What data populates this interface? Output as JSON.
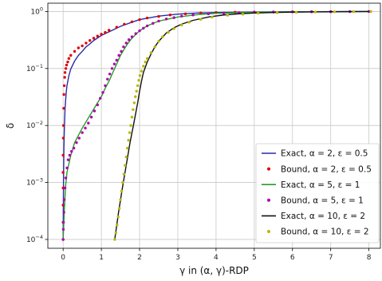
{
  "chart_data": {
    "type": "line",
    "xlabel": "γ in (α, γ)-RDP",
    "ylabel": "δ",
    "xscale": "linear",
    "yscale": "log",
    "xlim": [
      -0.4,
      8.3
    ],
    "ylim": [
      7e-05,
      1.4
    ],
    "grid": true,
    "legend_placement": "lower-right",
    "xticks": [
      0,
      1,
      2,
      3,
      4,
      5,
      6,
      7,
      8
    ],
    "xtick_labels": [
      "0",
      "1",
      "2",
      "3",
      "4",
      "5",
      "6",
      "7",
      "8"
    ],
    "yticks": [
      0.0001,
      0.001,
      0.01,
      0.1,
      1
    ],
    "ytick_labels": [
      {
        "base": "10",
        "exp": "−4"
      },
      {
        "base": "10",
        "exp": "−3"
      },
      {
        "base": "10",
        "exp": "−2"
      },
      {
        "base": "10",
        "exp": "−1"
      },
      {
        "base": "10",
        "exp": "0"
      }
    ],
    "series": [
      {
        "name": "Exact, α = 2, ε = 0.5",
        "style": "line",
        "color": "#2a2aaa",
        "points": [
          [
            0,
            0.0001
          ],
          [
            0.005,
            0.0003
          ],
          [
            0.01,
            0.001
          ],
          [
            0.02,
            0.004
          ],
          [
            0.03,
            0.008
          ],
          [
            0.05,
            0.02
          ],
          [
            0.08,
            0.038
          ],
          [
            0.1,
            0.05
          ],
          [
            0.15,
            0.075
          ],
          [
            0.2,
            0.098
          ],
          [
            0.3,
            0.135
          ],
          [
            0.4,
            0.17
          ],
          [
            0.5,
            0.2
          ],
          [
            0.6,
            0.24
          ],
          [
            0.7,
            0.27
          ],
          [
            0.8,
            0.31
          ],
          [
            1.0,
            0.38
          ],
          [
            1.2,
            0.44
          ],
          [
            1.5,
            0.55
          ],
          [
            1.8,
            0.65
          ],
          [
            2.0,
            0.72
          ],
          [
            2.5,
            0.83
          ],
          [
            3.0,
            0.9
          ],
          [
            3.5,
            0.94
          ],
          [
            4.0,
            0.96
          ],
          [
            5.0,
            0.98
          ],
          [
            6.0,
            0.99
          ],
          [
            7.0,
            0.995
          ],
          [
            8.0,
            1.0
          ]
        ]
      },
      {
        "name": "Bound, α = 2, ε = 0.5",
        "style": "scatter",
        "color": "#e00000",
        "points": [
          [
            0,
            0.0001
          ],
          [
            0,
            0.0002
          ],
          [
            0,
            0.0004
          ],
          [
            0,
            0.0008
          ],
          [
            0,
            0.0015
          ],
          [
            0,
            0.003
          ],
          [
            0.005,
            0.006
          ],
          [
            0.01,
            0.01
          ],
          [
            0.015,
            0.02
          ],
          [
            0.02,
            0.035
          ],
          [
            0.03,
            0.05
          ],
          [
            0.04,
            0.07
          ],
          [
            0.05,
            0.085
          ],
          [
            0.07,
            0.1
          ],
          [
            0.09,
            0.115
          ],
          [
            0.12,
            0.13
          ],
          [
            0.15,
            0.15
          ],
          [
            0.2,
            0.17
          ],
          [
            0.3,
            0.2
          ],
          [
            0.4,
            0.23
          ],
          [
            0.5,
            0.25
          ],
          [
            0.6,
            0.28
          ],
          [
            0.7,
            0.31
          ],
          [
            0.8,
            0.34
          ],
          [
            0.9,
            0.37
          ],
          [
            1.0,
            0.4
          ],
          [
            1.1,
            0.43
          ],
          [
            1.2,
            0.47
          ],
          [
            1.4,
            0.53
          ],
          [
            1.6,
            0.6
          ],
          [
            1.8,
            0.66
          ],
          [
            2.0,
            0.72
          ],
          [
            2.2,
            0.77
          ],
          [
            2.5,
            0.82
          ],
          [
            2.8,
            0.87
          ],
          [
            3.2,
            0.91
          ],
          [
            3.6,
            0.94
          ],
          [
            4.0,
            0.96
          ],
          [
            4.5,
            0.97
          ],
          [
            5.0,
            0.98
          ],
          [
            5.5,
            0.985
          ],
          [
            6.0,
            0.99
          ],
          [
            6.5,
            0.993
          ],
          [
            7.0,
            0.995
          ],
          [
            7.5,
            0.997
          ],
          [
            8.0,
            1.0
          ]
        ]
      },
      {
        "name": "Exact, α = 5, ε = 1",
        "style": "line",
        "color": "#2a9a2a",
        "points": [
          [
            0,
            0.0001
          ],
          [
            0.03,
            0.0003
          ],
          [
            0.06,
            0.0008
          ],
          [
            0.1,
            0.0015
          ],
          [
            0.2,
            0.003
          ],
          [
            0.3,
            0.005
          ],
          [
            0.5,
            0.009
          ],
          [
            0.7,
            0.015
          ],
          [
            0.9,
            0.025
          ],
          [
            1.0,
            0.032
          ],
          [
            1.1,
            0.045
          ],
          [
            1.2,
            0.06
          ],
          [
            1.3,
            0.085
          ],
          [
            1.4,
            0.12
          ],
          [
            1.5,
            0.17
          ],
          [
            1.6,
            0.22
          ],
          [
            1.7,
            0.28
          ],
          [
            1.8,
            0.34
          ],
          [
            2.0,
            0.46
          ],
          [
            2.2,
            0.56
          ],
          [
            2.5,
            0.68
          ],
          [
            3.0,
            0.8
          ],
          [
            3.5,
            0.88
          ],
          [
            4.0,
            0.93
          ],
          [
            5.0,
            0.97
          ],
          [
            6.0,
            0.985
          ],
          [
            7.0,
            0.993
          ],
          [
            8.0,
            1.0
          ]
        ]
      },
      {
        "name": "Bound, α = 5, ε = 1",
        "style": "scatter",
        "color": "#b000b0",
        "points": [
          [
            0,
            0.0001
          ],
          [
            0.005,
            0.00015
          ],
          [
            0.01,
            0.0002
          ],
          [
            0.02,
            0.0003
          ],
          [
            0.03,
            0.0005
          ],
          [
            0.05,
            0.0008
          ],
          [
            0.07,
            0.0012
          ],
          [
            0.1,
            0.0018
          ],
          [
            0.13,
            0.0025
          ],
          [
            0.17,
            0.003
          ],
          [
            0.22,
            0.0035
          ],
          [
            0.28,
            0.004
          ],
          [
            0.35,
            0.005
          ],
          [
            0.42,
            0.006
          ],
          [
            0.5,
            0.0075
          ],
          [
            0.58,
            0.009
          ],
          [
            0.66,
            0.011
          ],
          [
            0.74,
            0.014
          ],
          [
            0.82,
            0.018
          ],
          [
            0.9,
            0.023
          ],
          [
            0.97,
            0.03
          ],
          [
            1.04,
            0.038
          ],
          [
            1.1,
            0.05
          ],
          [
            1.16,
            0.065
          ],
          [
            1.22,
            0.08
          ],
          [
            1.28,
            0.1
          ],
          [
            1.34,
            0.12
          ],
          [
            1.4,
            0.14
          ],
          [
            1.46,
            0.17
          ],
          [
            1.52,
            0.2
          ],
          [
            1.58,
            0.24
          ],
          [
            1.65,
            0.28
          ],
          [
            1.72,
            0.32
          ],
          [
            1.8,
            0.36
          ],
          [
            1.9,
            0.41
          ],
          [
            2.0,
            0.46
          ],
          [
            2.1,
            0.51
          ],
          [
            2.2,
            0.56
          ],
          [
            2.35,
            0.62
          ],
          [
            2.5,
            0.68
          ],
          [
            2.7,
            0.74
          ],
          [
            2.9,
            0.78
          ],
          [
            3.1,
            0.83
          ],
          [
            3.4,
            0.87
          ],
          [
            3.8,
            0.91
          ],
          [
            4.2,
            0.94
          ],
          [
            4.6,
            0.955
          ],
          [
            5.0,
            0.97
          ],
          [
            5.5,
            0.98
          ],
          [
            6.0,
            0.985
          ],
          [
            6.5,
            0.99
          ],
          [
            7.0,
            0.993
          ],
          [
            7.5,
            0.997
          ],
          [
            8.0,
            1.0
          ]
        ]
      },
      {
        "name": "Exact, α = 10, ε = 2",
        "style": "line",
        "color": "#111111",
        "points": [
          [
            1.35,
            0.0001
          ],
          [
            1.45,
            0.0003
          ],
          [
            1.55,
            0.0008
          ],
          [
            1.65,
            0.002
          ],
          [
            1.75,
            0.005
          ],
          [
            1.85,
            0.011
          ],
          [
            1.95,
            0.025
          ],
          [
            2.0,
            0.04
          ],
          [
            2.05,
            0.06
          ],
          [
            2.1,
            0.085
          ],
          [
            2.2,
            0.13
          ],
          [
            2.3,
            0.18
          ],
          [
            2.4,
            0.24
          ],
          [
            2.5,
            0.3
          ],
          [
            2.7,
            0.42
          ],
          [
            2.9,
            0.52
          ],
          [
            3.1,
            0.6
          ],
          [
            3.4,
            0.7
          ],
          [
            3.8,
            0.8
          ],
          [
            4.2,
            0.87
          ],
          [
            4.6,
            0.91
          ],
          [
            5.0,
            0.94
          ],
          [
            5.5,
            0.96
          ],
          [
            6.0,
            0.975
          ],
          [
            6.5,
            0.985
          ],
          [
            7.0,
            0.99
          ],
          [
            7.5,
            0.995
          ],
          [
            8.0,
            1.0
          ]
        ]
      },
      {
        "name": "Bound, α = 10, ε = 2",
        "style": "scatter",
        "color": "#b8b800",
        "points": [
          [
            1.35,
            0.0001
          ],
          [
            1.38,
            0.00013
          ],
          [
            1.41,
            0.00018
          ],
          [
            1.44,
            0.00025
          ],
          [
            1.47,
            0.00035
          ],
          [
            1.5,
            0.0005
          ],
          [
            1.53,
            0.0007
          ],
          [
            1.56,
            0.001
          ],
          [
            1.59,
            0.0014
          ],
          [
            1.62,
            0.002
          ],
          [
            1.65,
            0.0028
          ],
          [
            1.68,
            0.004
          ],
          [
            1.71,
            0.0055
          ],
          [
            1.74,
            0.0075
          ],
          [
            1.77,
            0.01
          ],
          [
            1.8,
            0.014
          ],
          [
            1.83,
            0.019
          ],
          [
            1.86,
            0.025
          ],
          [
            1.89,
            0.032
          ],
          [
            1.92,
            0.04
          ],
          [
            1.95,
            0.05
          ],
          [
            1.98,
            0.062
          ],
          [
            2.01,
            0.075
          ],
          [
            2.05,
            0.09
          ],
          [
            2.1,
            0.11
          ],
          [
            2.15,
            0.13
          ],
          [
            2.2,
            0.15
          ],
          [
            2.3,
            0.19
          ],
          [
            2.4,
            0.24
          ],
          [
            2.5,
            0.3
          ],
          [
            2.6,
            0.36
          ],
          [
            2.75,
            0.43
          ],
          [
            2.9,
            0.5
          ],
          [
            3.1,
            0.58
          ],
          [
            3.3,
            0.65
          ],
          [
            3.6,
            0.73
          ],
          [
            3.9,
            0.8
          ],
          [
            4.3,
            0.86
          ],
          [
            4.7,
            0.9
          ],
          [
            5.1,
            0.935
          ],
          [
            5.6,
            0.955
          ],
          [
            6.1,
            0.97
          ],
          [
            6.6,
            0.98
          ],
          [
            7.1,
            0.988
          ],
          [
            7.6,
            0.994
          ],
          [
            8.05,
            1.0
          ]
        ]
      }
    ]
  }
}
